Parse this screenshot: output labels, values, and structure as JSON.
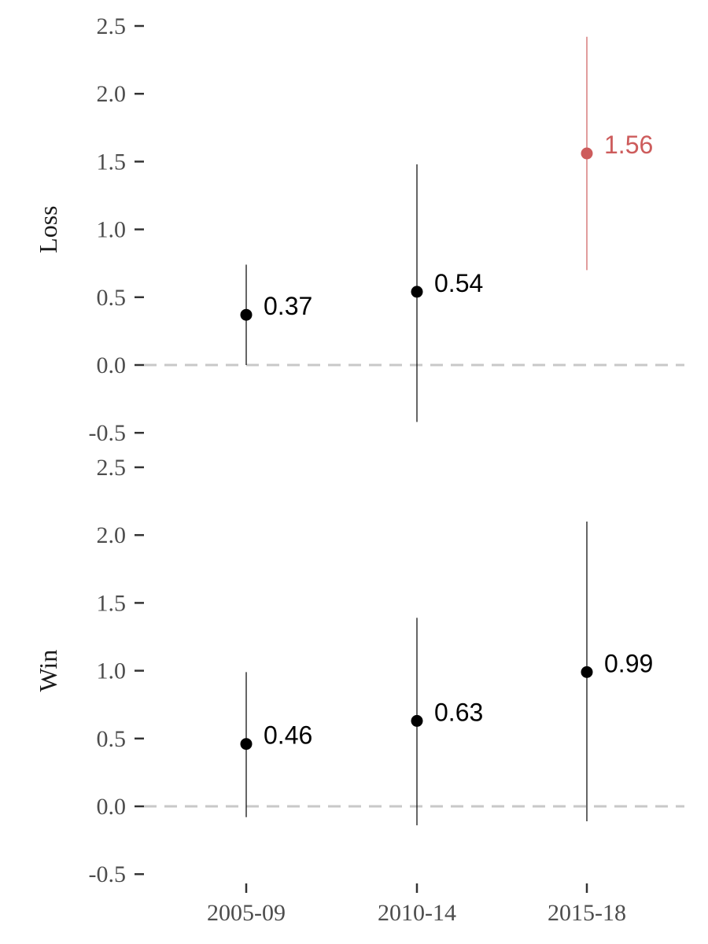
{
  "chart_data": {
    "type": "scatter",
    "categories": [
      "2005-09",
      "2010-14",
      "2015-18"
    ],
    "y_ticks": [
      "-0.5",
      "0.0",
      "0.5",
      "1.0",
      "1.5",
      "2.0",
      "2.5"
    ],
    "ylim": [
      -0.5,
      2.5
    ],
    "reference_line": 0,
    "grid": false,
    "colors": {
      "default": "#000000",
      "highlight": "#cd5c5c",
      "reference": "#c8c8c8"
    },
    "panels": [
      {
        "label": "Loss",
        "points": [
          {
            "category": "2005-09",
            "value": 0.37,
            "label": "0.37",
            "low": 0.0,
            "high": 0.74,
            "highlight": false
          },
          {
            "category": "2010-14",
            "value": 0.54,
            "label": "0.54",
            "low": -0.42,
            "high": 1.48,
            "highlight": false
          },
          {
            "category": "2015-18",
            "value": 1.56,
            "label": "1.56",
            "low": 0.7,
            "high": 2.42,
            "highlight": true
          }
        ]
      },
      {
        "label": "Win",
        "points": [
          {
            "category": "2005-09",
            "value": 0.46,
            "label": "0.46",
            "low": -0.08,
            "high": 0.99,
            "highlight": false
          },
          {
            "category": "2010-14",
            "value": 0.63,
            "label": "0.63",
            "low": -0.14,
            "high": 1.39,
            "highlight": false
          },
          {
            "category": "2015-18",
            "value": 0.99,
            "label": "0.99",
            "low": -0.11,
            "high": 2.1,
            "highlight": false
          }
        ]
      }
    ]
  }
}
